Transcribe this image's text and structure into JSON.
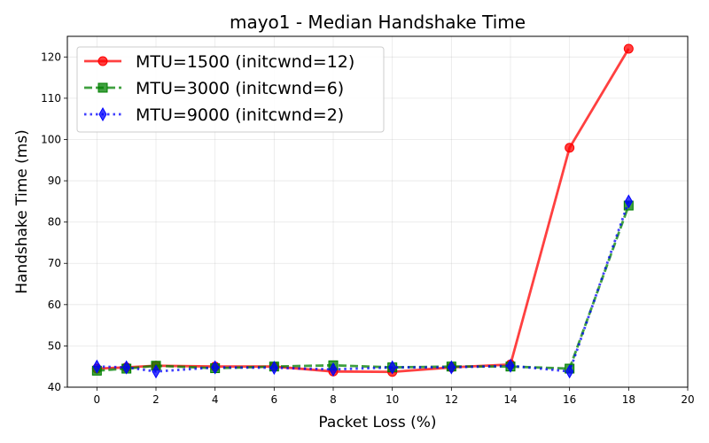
{
  "chart_data": {
    "type": "line",
    "title": "mayo1 - Median Handshake Time",
    "xlabel": "Packet Loss (%)",
    "ylabel": "Handshake Time (ms)",
    "xlim": [
      -1,
      20
    ],
    "ylim": [
      40,
      125
    ],
    "xticks": [
      0,
      2,
      4,
      6,
      8,
      10,
      12,
      14,
      16,
      18,
      20
    ],
    "yticks": [
      40,
      50,
      60,
      70,
      80,
      90,
      100,
      110,
      120
    ],
    "grid": true,
    "legend_position": "top-left",
    "x": [
      0,
      1,
      2,
      4,
      6,
      8,
      10,
      12,
      14,
      16,
      18
    ],
    "series": [
      {
        "name": "MTU=1500 (initcwnd=12)",
        "color": "#ff0000",
        "marker": "circle",
        "linestyle": "solid",
        "values": [
          44.5,
          44.8,
          45.2,
          45.0,
          45.0,
          43.8,
          43.7,
          44.8,
          45.5,
          98.0,
          122.0
        ]
      },
      {
        "name": "MTU=3000 (initcwnd=6)",
        "color": "#008000",
        "marker": "square",
        "linestyle": "dashed",
        "values": [
          44.0,
          44.5,
          45.2,
          44.6,
          45.0,
          45.3,
          44.8,
          45.0,
          45.0,
          44.5,
          84.0
        ]
      },
      {
        "name": "MTU=9000 (initcwnd=2)",
        "color": "#0000ff",
        "marker": "thin_diamond",
        "linestyle": "dotted",
        "values": [
          45.0,
          44.8,
          43.8,
          44.8,
          44.7,
          44.3,
          44.8,
          44.8,
          45.2,
          43.8,
          85.0
        ]
      }
    ]
  }
}
